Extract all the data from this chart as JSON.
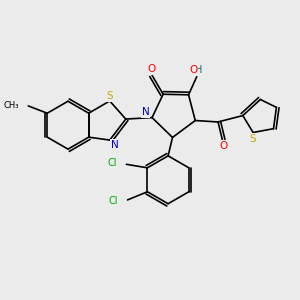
{
  "background_color": "#ebebeb",
  "atom_colors": {
    "C": "#000000",
    "S": "#ccaa00",
    "N": "#0000cc",
    "O": "#ff0000",
    "H": "#007070",
    "Cl": "#00aa00"
  }
}
